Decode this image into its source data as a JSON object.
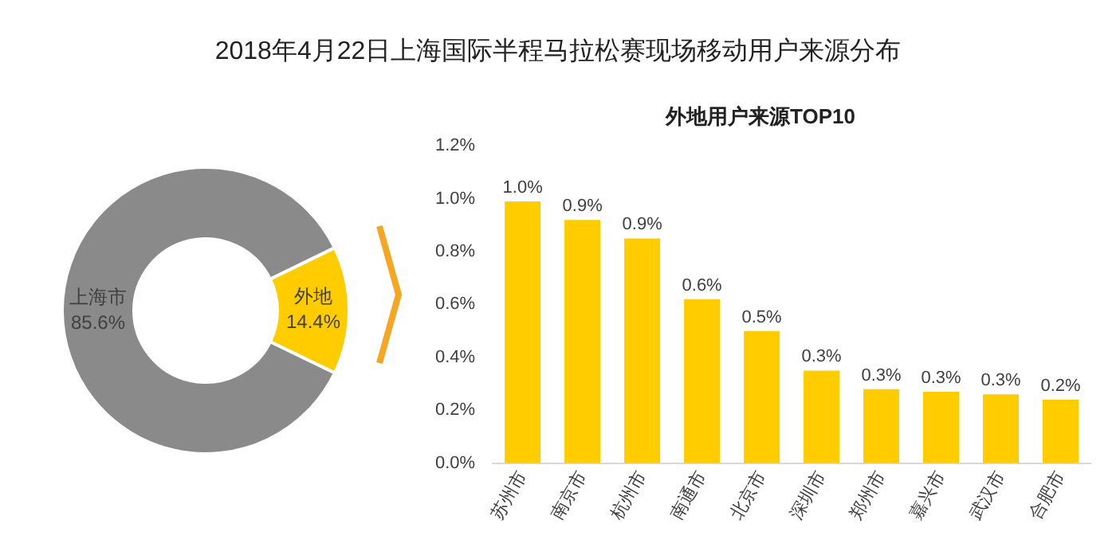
{
  "chart_data": [
    {
      "type": "donut",
      "title": "2018年4月22日上海国际半程马拉松赛现场移动用户来源分布",
      "categories": [
        "外地",
        "上海市"
      ],
      "values": [
        14.4,
        85.6
      ],
      "colors": [
        "#ffcc00",
        "#8a8a8a"
      ],
      "value_labels": [
        "14.4%",
        "85.6%"
      ],
      "legend": false
    },
    {
      "type": "bar",
      "title": "外地用户来源TOP10",
      "categories": [
        "苏州市",
        "南京市",
        "杭州市",
        "南通市",
        "北京市",
        "深圳市",
        "郑州市",
        "嘉兴市",
        "武汉市",
        "合肥市"
      ],
      "values": [
        0.99,
        0.92,
        0.85,
        0.62,
        0.5,
        0.35,
        0.28,
        0.27,
        0.26,
        0.24
      ],
      "value_labels": [
        "1.0%",
        "0.9%",
        "0.9%",
        "0.6%",
        "0.5%",
        "0.3%",
        "0.3%",
        "0.3%",
        "0.3%",
        "0.2%"
      ],
      "color": "#ffcc00",
      "ylim": [
        0,
        1.2
      ],
      "yticks": [
        {
          "value": 0,
          "label": "0.0%"
        },
        {
          "value": 0.2,
          "label": "0.2%"
        },
        {
          "value": 0.4,
          "label": "0.4%"
        },
        {
          "value": 0.6,
          "label": "0.6%"
        },
        {
          "value": 0.8,
          "label": "0.8%"
        },
        {
          "value": 1.0,
          "label": "1.0%"
        },
        {
          "value": 1.2,
          "label": "1.2%"
        }
      ],
      "grid": false,
      "legend": false
    }
  ]
}
